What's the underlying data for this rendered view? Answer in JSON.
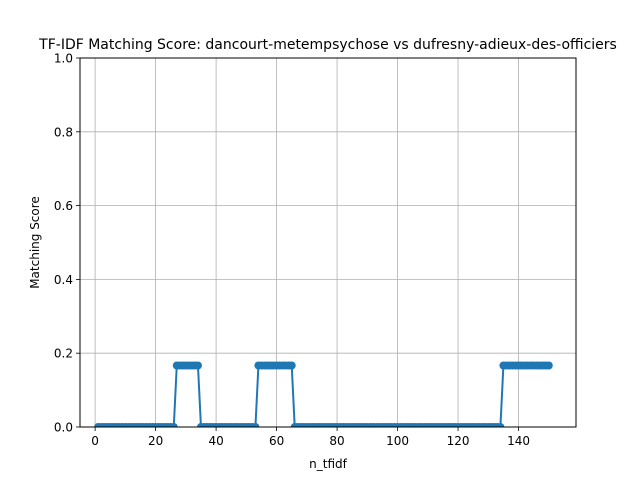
{
  "chart_data": {
    "type": "line",
    "title": "TF-IDF Matching Score: dancourt-metempsychose vs dufresny-adieux-des-officiers",
    "xlabel": "n_tfidf",
    "ylabel": "Matching Score",
    "xlim": [
      -5,
      159
    ],
    "ylim": [
      0,
      1
    ],
    "x_ticks": [
      0,
      20,
      40,
      60,
      80,
      100,
      120,
      140
    ],
    "y_ticks": [
      0.0,
      0.2,
      0.4,
      0.6,
      0.8,
      1.0
    ],
    "y_tick_labels": [
      "0.0",
      "0.2",
      "0.4",
      "0.6",
      "0.8",
      "1.0"
    ],
    "grid": true,
    "color": "#1f77b4",
    "marker": "circle",
    "x_range": [
      1,
      150
    ],
    "segments": [
      {
        "x_start": 1,
        "x_end": 26,
        "y": 0.0
      },
      {
        "x_start": 27,
        "x_end": 34,
        "y": 0.1667
      },
      {
        "x_start": 35,
        "x_end": 53,
        "y": 0.0
      },
      {
        "x_start": 54,
        "x_end": 65,
        "y": 0.1667
      },
      {
        "x_start": 66,
        "x_end": 134,
        "y": 0.0
      },
      {
        "x_start": 135,
        "x_end": 150,
        "y": 0.1667
      }
    ]
  }
}
